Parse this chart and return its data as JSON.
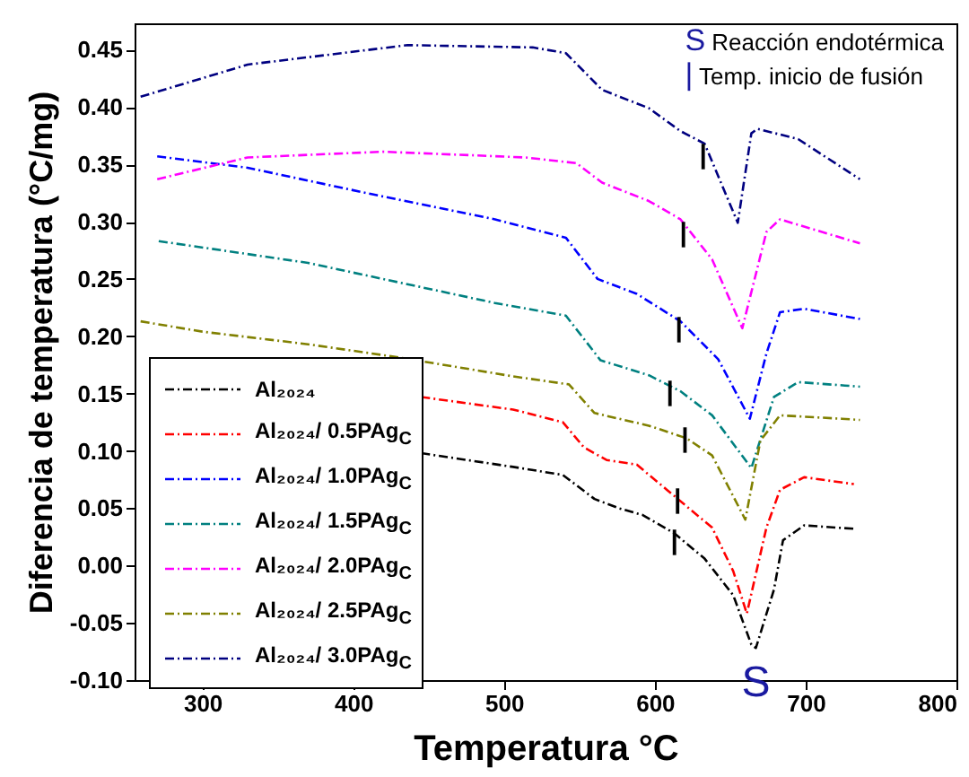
{
  "chart_data": {
    "type": "line",
    "xlabel": "Temperatura °C",
    "ylabel": "Diferencia de temperatura (°C/mg)",
    "xlim": [
      255,
      800
    ],
    "xticks": [
      300,
      400,
      500,
      600,
      700,
      800
    ],
    "ylim": [
      -0.1,
      0.473
    ],
    "yticks": [
      {
        "value": -0.1,
        "label": "-0.10"
      },
      -0.05,
      {
        "value": 0,
        "label": "0.00"
      },
      0.05,
      {
        "value": 0.1,
        "label": "0.10"
      },
      0.15,
      {
        "value": 0.2,
        "label": "0.20"
      },
      0.25,
      {
        "value": 0.3,
        "label": "0.30"
      },
      0.35,
      {
        "value": 0.4,
        "label": "0.40"
      },
      0.45
    ],
    "grid": false,
    "legend": "bottom left",
    "line_style": "dashed",
    "series": [
      {
        "name": "Al₂₀₂₄",
        "color": "#000000",
        "x": [
          445,
          506,
          539,
          560,
          576,
          592,
          613,
          633,
          652,
          664,
          667,
          679,
          685,
          699,
          732
        ],
        "values": [
          0.098,
          0.086,
          0.079,
          0.058,
          0.05,
          0.044,
          0.028,
          0.006,
          -0.026,
          -0.069,
          -0.072,
          -0.021,
          0.022,
          0.035,
          0.032
        ]
      },
      {
        "name": "Al₂₀₂₄/ 0.5PAg$_{C}$",
        "color": "#ff0000",
        "x": [
          445,
          506,
          539,
          553,
          568,
          588,
          608,
          638,
          652,
          661,
          674,
          683,
          699,
          732
        ],
        "values": [
          0.147,
          0.136,
          0.125,
          0.103,
          0.092,
          0.088,
          0.066,
          0.033,
          -0.005,
          -0.042,
          0.033,
          0.066,
          0.077,
          0.071
        ]
      },
      {
        "name": "Al₂₀₂₄/ 1.0PAg$_{C}$",
        "color": "#0000ff",
        "x": [
          270,
          330,
          412,
          494,
          541,
          562,
          588,
          617,
          642,
          663,
          674,
          683,
          699,
          736
        ],
        "values": [
          0.357,
          0.347,
          0.324,
          0.302,
          0.286,
          0.25,
          0.237,
          0.213,
          0.18,
          0.128,
          0.185,
          0.221,
          0.224,
          0.215
        ]
      },
      {
        "name": "Al₂₀₂₄/ 1.5PAg$_{C}$",
        "color": "#008080",
        "x": [
          271,
          370,
          494,
          541,
          564,
          596,
          617,
          638,
          664,
          679,
          695,
          726,
          736
        ],
        "values": [
          0.283,
          0.264,
          0.229,
          0.218,
          0.179,
          0.166,
          0.152,
          0.131,
          0.085,
          0.147,
          0.16,
          0.157,
          0.156
        ]
      },
      {
        "name": "Al₂₀₂₄/ 2.0PAg$_{C}$",
        "color": "#ff00ff",
        "x": [
          270,
          330,
          420,
          514,
          548,
          565,
          596,
          617,
          638,
          658,
          674,
          683,
          736
        ],
        "values": [
          0.337,
          0.356,
          0.361,
          0.356,
          0.351,
          0.334,
          0.318,
          0.302,
          0.267,
          0.207,
          0.291,
          0.302,
          0.281
        ]
      },
      {
        "name": "Al₂₀₂₄/ 2.5PAg$_{C}$",
        "color": "#808000",
        "x": [
          259,
          300,
          370,
          428,
          506,
          543,
          560,
          596,
          621,
          638,
          660,
          670,
          683,
          724,
          736
        ],
        "values": [
          0.213,
          0.204,
          0.193,
          0.182,
          0.165,
          0.158,
          0.133,
          0.122,
          0.111,
          0.096,
          0.04,
          0.109,
          0.131,
          0.128,
          0.127
        ]
      },
      {
        "name": "Al₂₀₂₄/ 3.0PAg$_{C}$",
        "color": "#000080",
        "x": [
          259,
          330,
          436,
          519,
          541,
          565,
          596,
          617,
          633,
          655,
          664,
          668,
          695,
          736
        ],
        "values": [
          0.409,
          0.437,
          0.454,
          0.452,
          0.447,
          0.415,
          0.399,
          0.379,
          0.368,
          0.299,
          0.377,
          0.381,
          0.372,
          0.337
        ]
      }
    ],
    "annotations": [
      "S Reacción endotérmica",
      "| Temp. inicio de fusión",
      {
        "text": "S",
        "x": 667,
        "y": -0.072
      },
      {
        "text": "|",
        "x": 632,
        "y": 0.359
      },
      {
        "text": "|",
        "x": 619,
        "y": 0.291
      },
      {
        "text": "|",
        "x": 616,
        "y": 0.208
      },
      {
        "text": "|",
        "x": 610,
        "y": 0.152
      },
      {
        "text": "|",
        "x": 620,
        "y": 0.111
      },
      {
        "text": "|",
        "x": 615,
        "y": 0.058
      },
      {
        "text": "|",
        "x": 613,
        "y": 0.022
      }
    ]
  }
}
